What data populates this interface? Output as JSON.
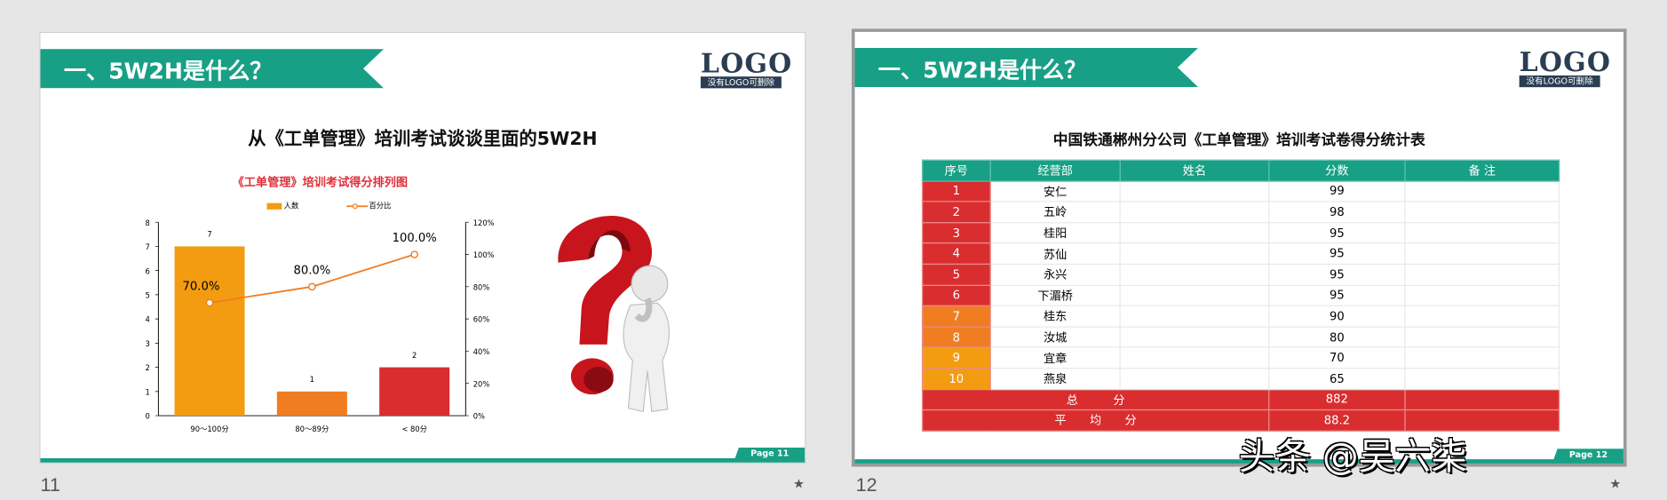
{
  "slides": [
    {
      "number": "11",
      "heading": "一、5W2H是什么？",
      "logo": {
        "big": "LOGO",
        "small": "没有LOGO可删除"
      },
      "page_tab": "Page 11",
      "title": "从《工单管理》培训考试谈谈里面的5W2H",
      "star": "★"
    },
    {
      "number": "12",
      "heading": "一、5W2H是什么？",
      "logo": {
        "big": "LOGO",
        "small": "没有LOGO可删除"
      },
      "page_tab": "Page 12",
      "title": "中国铁通郴州分公司《工单管理》培训考试卷得分统计表",
      "star": "★"
    }
  ],
  "chart_data": {
    "type": "bar",
    "title": "《工单管理》培训考试得分排列图",
    "categories": [
      "90～100分",
      "80～89分",
      "< 80分"
    ],
    "series": [
      {
        "name": "人数",
        "type": "bar",
        "values": [
          7,
          1,
          2
        ],
        "colors": [
          "#f39c12",
          "#f07d22",
          "#d92d2f"
        ],
        "axis": "left"
      },
      {
        "name": "百分比",
        "type": "line",
        "values": [
          70.0,
          80.0,
          100.0
        ],
        "labels": [
          "70.0%",
          "80.0%",
          "100.0%"
        ],
        "color": "#f07d22",
        "axis": "right"
      }
    ],
    "ylim": [
      0,
      8
    ],
    "yticks": [
      "0",
      "1",
      "2",
      "3",
      "4",
      "5",
      "6",
      "7",
      "8"
    ],
    "y2lim": [
      0,
      120
    ],
    "y2ticks": [
      "0%",
      "20%",
      "40%",
      "60%",
      "80%",
      "100%",
      "120%"
    ],
    "legend": "top"
  },
  "table": {
    "headers": [
      "序号",
      "经营部",
      "姓名",
      "分数",
      "备 注"
    ],
    "rows": [
      {
        "no": "1",
        "dept": "安仁",
        "name": "",
        "score": "99",
        "note": "",
        "color": "#d92d2f"
      },
      {
        "no": "2",
        "dept": "五岭",
        "name": "",
        "score": "98",
        "note": "",
        "color": "#d92d2f"
      },
      {
        "no": "3",
        "dept": "桂阳",
        "name": "",
        "score": "95",
        "note": "",
        "color": "#d92d2f"
      },
      {
        "no": "4",
        "dept": "苏仙",
        "name": "",
        "score": "95",
        "note": "",
        "color": "#d92d2f"
      },
      {
        "no": "5",
        "dept": "永兴",
        "name": "",
        "score": "95",
        "note": "",
        "color": "#d92d2f"
      },
      {
        "no": "6",
        "dept": "下湄桥",
        "name": "",
        "score": "95",
        "note": "",
        "color": "#d92d2f"
      },
      {
        "no": "7",
        "dept": "桂东",
        "name": "",
        "score": "90",
        "note": "",
        "color": "#f07d22"
      },
      {
        "no": "8",
        "dept": "汝城",
        "name": "",
        "score": "80",
        "note": "",
        "color": "#f07d22"
      },
      {
        "no": "9",
        "dept": "宜章",
        "name": "",
        "score": "70",
        "note": "",
        "color": "#f39c12"
      },
      {
        "no": "10",
        "dept": "燕泉",
        "name": "",
        "score": "65",
        "note": "",
        "color": "#f39c12"
      }
    ],
    "total": {
      "label": "总　　　分",
      "value": "882"
    },
    "average": {
      "label": "平　　均　　分",
      "value": "88.2"
    }
  },
  "watermark": "头条 @吴六柒",
  "colors": {
    "accent": "#17a085",
    "red": "#d92d2f",
    "orange": "#f07d22",
    "amber": "#f39c12",
    "logo": "#2b3d52"
  }
}
